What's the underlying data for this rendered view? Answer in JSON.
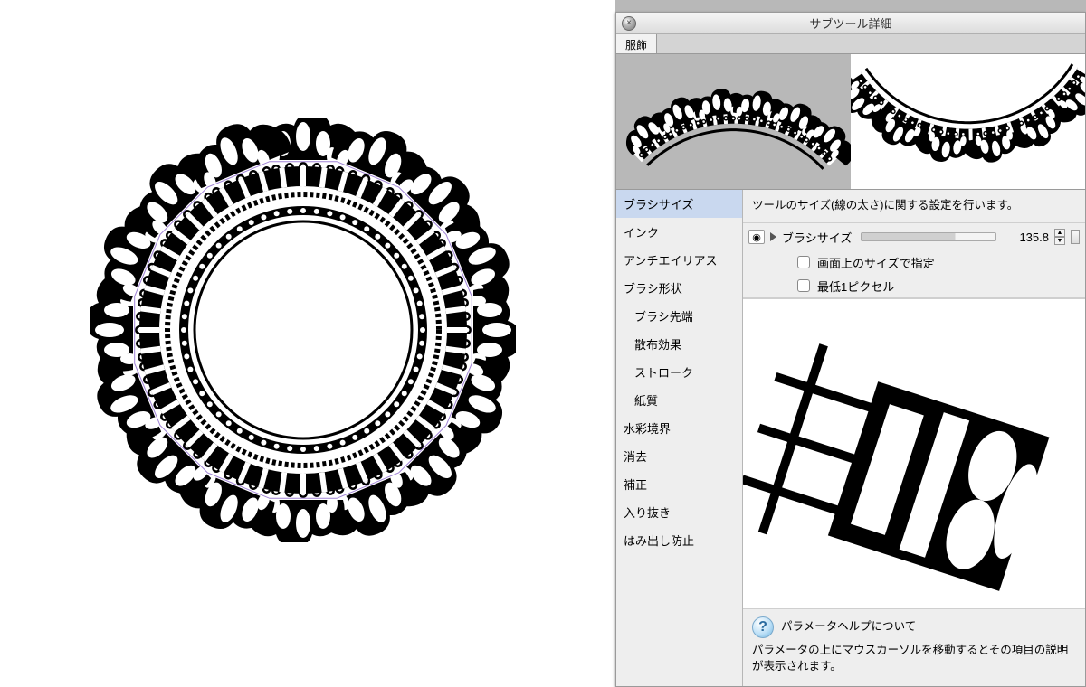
{
  "window": {
    "title": "サブツール詳細",
    "close_glyph": "×"
  },
  "tab": {
    "label": "服飾"
  },
  "categories": {
    "items": [
      {
        "label": "ブラシサイズ",
        "indent": false,
        "selected": true
      },
      {
        "label": "インク",
        "indent": false,
        "selected": false
      },
      {
        "label": "アンチエイリアス",
        "indent": false,
        "selected": false
      },
      {
        "label": "ブラシ形状",
        "indent": false,
        "selected": false
      },
      {
        "label": "ブラシ先端",
        "indent": true,
        "selected": false
      },
      {
        "label": "散布効果",
        "indent": true,
        "selected": false
      },
      {
        "label": "ストローク",
        "indent": true,
        "selected": false
      },
      {
        "label": "紙質",
        "indent": true,
        "selected": false
      },
      {
        "label": "水彩境界",
        "indent": false,
        "selected": false
      },
      {
        "label": "消去",
        "indent": false,
        "selected": false
      },
      {
        "label": "補正",
        "indent": false,
        "selected": false
      },
      {
        "label": "入り抜き",
        "indent": false,
        "selected": false
      },
      {
        "label": "はみ出し防止",
        "indent": false,
        "selected": false
      }
    ]
  },
  "detail": {
    "description": "ツールのサイズ(線の太さ)に関する設定を行います。",
    "param": {
      "label": "ブラシサイズ",
      "value": "135.8",
      "slider_fill_pct": 70
    },
    "checks": [
      {
        "label": "画面上のサイズで指定",
        "checked": false
      },
      {
        "label": "最低1ピクセル",
        "checked": false
      }
    ]
  },
  "help": {
    "title": "パラメータヘルプについて",
    "body": "パラメータの上にマウスカーソルを移動するとその項目の説明が表示されます。",
    "glyph": "?"
  },
  "colors": {
    "panel_bg": "#e8e8e8",
    "selected_bg": "#c9d8ef",
    "neutral_bg": "#b8b8b8",
    "border": "#9a9a9a",
    "guide": "#a083d6"
  },
  "canvas": {
    "lace": {
      "outer_r": 225,
      "inner_r": 120,
      "scallops": 16,
      "guide_poly_r": 190
    }
  }
}
